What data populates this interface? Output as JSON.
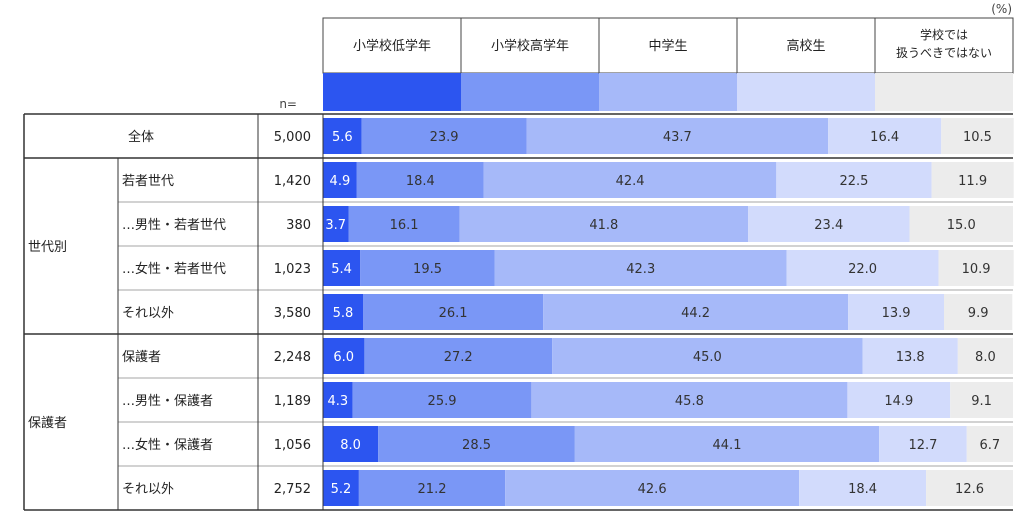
{
  "chart_data": {
    "type": "bar",
    "stacked": true,
    "orientation": "horizontal",
    "unit_label": "(%)",
    "n_label": "n=",
    "series": [
      {
        "name": "小学校低学年",
        "color": "#2c55f0"
      },
      {
        "name": "小学校高学年",
        "color": "#7a97f6"
      },
      {
        "name": "中学生",
        "color": "#a6b9f9"
      },
      {
        "name": "高校生",
        "color": "#d2dbfc"
      },
      {
        "name": "学校では\n扱うべきではない",
        "color": "#ececec"
      }
    ],
    "groups": [
      {
        "label": "",
        "rows": [
          {
            "label": "全体",
            "n": "5,000",
            "values": [
              5.6,
              23.9,
              43.7,
              16.4,
              10.5
            ]
          }
        ]
      },
      {
        "label": "世代別",
        "rows": [
          {
            "label": "若者世代",
            "n": "1,420",
            "values": [
              4.9,
              18.4,
              42.4,
              22.5,
              11.9
            ]
          },
          {
            "label": "…男性・若者世代",
            "n": "380",
            "values": [
              3.7,
              16.1,
              41.8,
              23.4,
              15.0
            ]
          },
          {
            "label": "…女性・若者世代",
            "n": "1,023",
            "values": [
              5.4,
              19.5,
              42.3,
              22.0,
              10.9
            ]
          },
          {
            "label": "それ以外",
            "n": "3,580",
            "values": [
              5.8,
              26.1,
              44.2,
              13.9,
              9.9
            ]
          }
        ]
      },
      {
        "label": "保護者",
        "rows": [
          {
            "label": "保護者",
            "n": "2,248",
            "values": [
              6.0,
              27.2,
              45.0,
              13.8,
              8.0
            ]
          },
          {
            "label": "…男性・保護者",
            "n": "1,189",
            "values": [
              4.3,
              25.9,
              45.8,
              14.9,
              9.1
            ]
          },
          {
            "label": "…女性・保護者",
            "n": "1,056",
            "values": [
              8.0,
              28.5,
              44.1,
              12.7,
              6.7
            ]
          },
          {
            "label": "それ以外",
            "n": "2,752",
            "values": [
              5.2,
              21.2,
              42.6,
              18.4,
              12.6
            ]
          }
        ]
      }
    ],
    "xlim": [
      0,
      100
    ]
  }
}
